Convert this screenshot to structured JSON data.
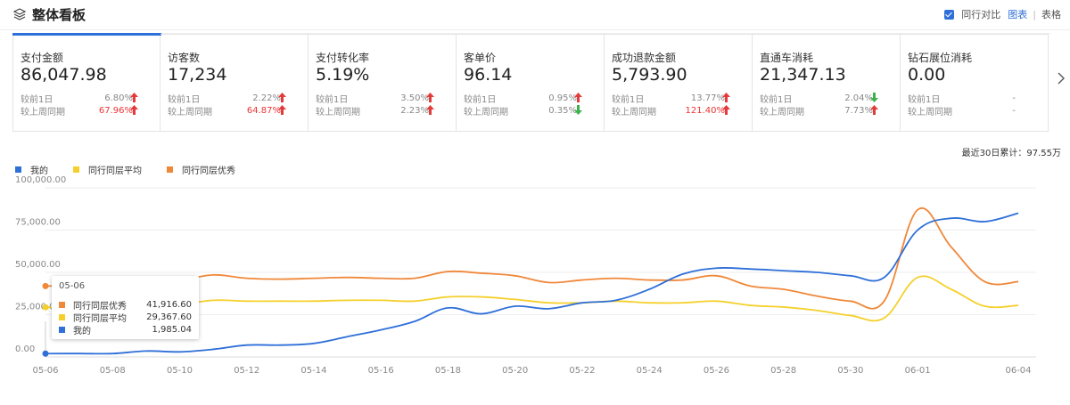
{
  "header": {
    "title": "整体看板",
    "compare_label": "同行对比",
    "view_chart": "图表",
    "view_table": "表格"
  },
  "metrics": [
    {
      "name": "支付金额",
      "value": "86,047.98",
      "d1_label": "较前1日",
      "d1": "6.80%",
      "d1_dir": "up",
      "w_label": "较上周同期",
      "w": "67.96%",
      "w_dir": "up"
    },
    {
      "name": "访客数",
      "value": "17,234",
      "d1_label": "较前1日",
      "d1": "2.22%",
      "d1_dir": "up",
      "w_label": "较上周同期",
      "w": "64.87%",
      "w_dir": "up"
    },
    {
      "name": "支付转化率",
      "value": "5.19%",
      "d1_label": "较前1日",
      "d1": "3.50%",
      "d1_dir": "up",
      "w_label": "较上周同期",
      "w": "2.23%",
      "w_dir": "up"
    },
    {
      "name": "客单价",
      "value": "96.14",
      "d1_label": "较前1日",
      "d1": "0.95%",
      "d1_dir": "up",
      "w_label": "较上周同期",
      "w": "0.35%",
      "w_dir": "down"
    },
    {
      "name": "成功退款金额",
      "value": "5,793.90",
      "d1_label": "较前1日",
      "d1": "13.77%",
      "d1_dir": "up",
      "w_label": "较上周同期",
      "w": "121.40%",
      "w_dir": "up"
    },
    {
      "name": "直通车消耗",
      "value": "21,347.13",
      "d1_label": "较前1日",
      "d1": "2.04%",
      "d1_dir": "down",
      "w_label": "较上周同期",
      "w": "7.73%",
      "w_dir": "up"
    },
    {
      "name": "钻石展位消耗",
      "value": "0.00",
      "d1_label": "较前1日",
      "d1": "-",
      "d1_dir": "none",
      "w_label": "较上周同期",
      "w": "-",
      "w_dir": "none"
    }
  ],
  "summary": {
    "text": "最近30日累计：97.55万"
  },
  "colors": {
    "mine": "#2f6fd8",
    "avg": "#f5d02c",
    "best": "#f0883a",
    "up": "#e33b3b",
    "down": "#3bb34a",
    "accent": "#2f6fd8"
  },
  "tooltip": {
    "date": "05-06",
    "rows": [
      {
        "name": "同行同层优秀",
        "value": "41,916.60",
        "color": "#f0883a"
      },
      {
        "name": "同行同层平均",
        "value": "29,367.60",
        "color": "#f5d02c"
      },
      {
        "name": "我的",
        "value": "1,985.04",
        "color": "#2f6fd8"
      }
    ]
  },
  "chart_data": {
    "type": "line",
    "x_tick_labels": [
      "05-06",
      "05-08",
      "05-10",
      "05-12",
      "05-14",
      "05-16",
      "05-18",
      "05-20",
      "05-22",
      "05-24",
      "05-26",
      "05-28",
      "05-30",
      "06-01",
      "06-04"
    ],
    "x": [
      "05-06",
      "05-07",
      "05-08",
      "05-09",
      "05-10",
      "05-11",
      "05-12",
      "05-13",
      "05-14",
      "05-15",
      "05-16",
      "05-17",
      "05-18",
      "05-19",
      "05-20",
      "05-21",
      "05-22",
      "05-23",
      "05-24",
      "05-25",
      "05-26",
      "05-27",
      "05-28",
      "05-29",
      "05-30",
      "05-31",
      "06-01",
      "06-02",
      "06-03",
      "06-04"
    ],
    "y_ticks": [
      "0.00",
      "25,000.00",
      "50,000.00",
      "75,000.00",
      "100,000.00"
    ],
    "ylim": [
      0,
      100000
    ],
    "grid": true,
    "legend_position": "top-left",
    "series": [
      {
        "name": "我的",
        "color": "#2f6fd8",
        "values": [
          1985,
          2000,
          2000,
          3500,
          3000,
          4500,
          7000,
          7000,
          8000,
          12000,
          16000,
          21000,
          29000,
          25500,
          30000,
          28500,
          32000,
          33500,
          40000,
          49000,
          52500,
          52000,
          51000,
          50000,
          48000,
          47000,
          75000,
          82000,
          80000,
          85000
        ]
      },
      {
        "name": "同行同层平均",
        "color": "#f5d02c",
        "values": [
          29367,
          29000,
          29500,
          31000,
          31000,
          33500,
          33000,
          33000,
          33000,
          33500,
          33500,
          33000,
          35500,
          35500,
          34000,
          32000,
          32000,
          33000,
          32000,
          32000,
          33000,
          30500,
          29500,
          27500,
          24500,
          23000,
          47000,
          40000,
          30000,
          30500
        ]
      },
      {
        "name": "同行同层优秀",
        "color": "#f0883a",
        "values": [
          41916,
          42000,
          40500,
          42000,
          45000,
          48500,
          46500,
          46000,
          46500,
          47000,
          46500,
          46500,
          50500,
          49500,
          48000,
          44000,
          45500,
          46500,
          45500,
          45500,
          48000,
          42000,
          40000,
          36000,
          33000,
          33000,
          87000,
          65000,
          44500,
          44500
        ]
      }
    ]
  }
}
